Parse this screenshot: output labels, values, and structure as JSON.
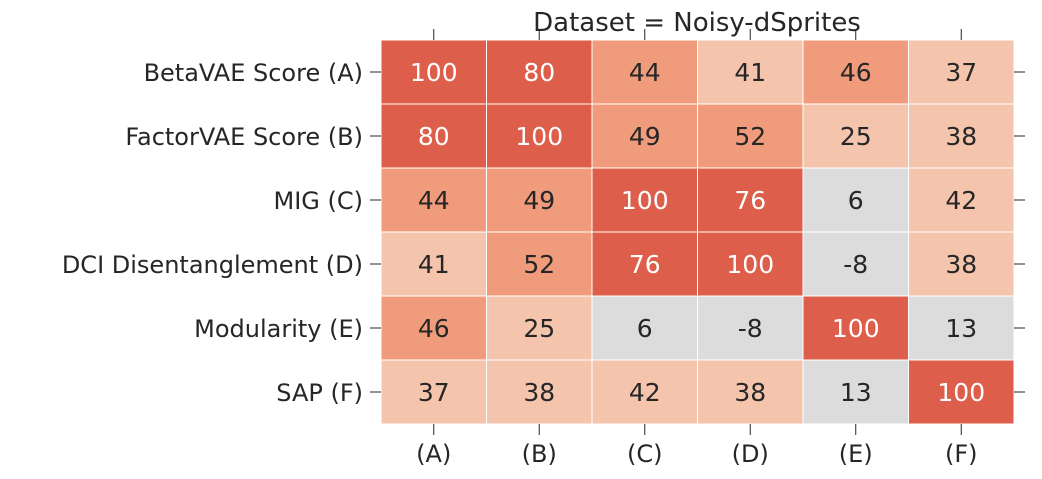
{
  "chart_data": {
    "type": "heatmap",
    "title": "Dataset = Noisy-dSprites",
    "row_labels": [
      "BetaVAE Score (A)",
      "FactorVAE Score (B)",
      "MIG (C)",
      "DCI Disentanglement (D)",
      "Modularity (E)",
      "SAP (F)"
    ],
    "col_labels": [
      "(A)",
      "(B)",
      "(C)",
      "(D)",
      "(E)",
      "(F)"
    ],
    "values": [
      [
        100,
        80,
        44,
        41,
        46,
        37
      ],
      [
        80,
        100,
        49,
        52,
        25,
        38
      ],
      [
        44,
        49,
        100,
        76,
        6,
        42
      ],
      [
        41,
        52,
        76,
        100,
        -8,
        38
      ],
      [
        46,
        25,
        6,
        -8,
        100,
        13
      ],
      [
        37,
        38,
        42,
        38,
        13,
        100
      ]
    ],
    "colors": {
      "strong": "#dd5e4b",
      "medium": "#f09c7c",
      "light": "#f4c4ad",
      "neutral": "#dcdcdc",
      "text_dark": "#262626",
      "text_light": "#ffffff"
    }
  }
}
